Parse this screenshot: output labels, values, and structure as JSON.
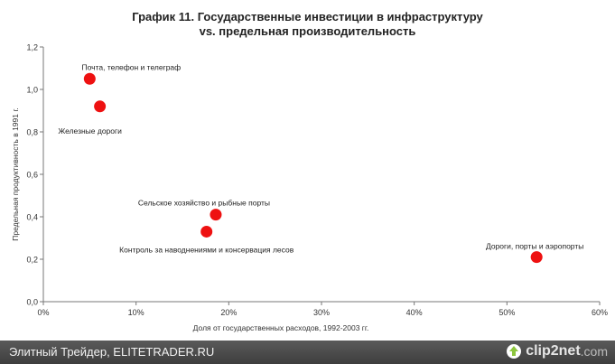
{
  "chart_data": {
    "type": "scatter",
    "title_line1": "График 11. Государственные инвестиции в инфраструктуру",
    "title_line2": "vs. предельная производительность",
    "xlabel": "Доля от государственных расходов, 1992-2003 гг.",
    "ylabel": "Предельная продуктивность  в 1991 г.",
    "xlim": [
      0,
      60
    ],
    "ylim": [
      0,
      1.2
    ],
    "x_tick_labels": [
      "0%",
      "10%",
      "20%",
      "30%",
      "40%",
      "50%",
      "60%"
    ],
    "y_tick_labels": [
      "0,0",
      "0,2",
      "0,4",
      "0,6",
      "0,8",
      "1,0",
      "1,2"
    ],
    "grid": false,
    "marker_color": "#ee1111",
    "points": [
      {
        "label": "Почта, телефон и телеграф",
        "x": 5,
        "y": 1.05
      },
      {
        "label": "Железные дороги",
        "x": 6.1,
        "y": 0.92
      },
      {
        "label": "Сельское хозяйство и рыбные порты",
        "x": 18.6,
        "y": 0.41
      },
      {
        "label": "Контроль за наводнениями и консервация лесов",
        "x": 17.6,
        "y": 0.33
      },
      {
        "label": "Дороги, порты и аэропорты",
        "x": 53.2,
        "y": 0.21
      }
    ]
  },
  "footer": {
    "text": "Элитный Трейдер, ELITETRADER.RU",
    "brand": "clip2net",
    "brand_tld": ".com",
    "brand_color": "#8dc63f"
  }
}
